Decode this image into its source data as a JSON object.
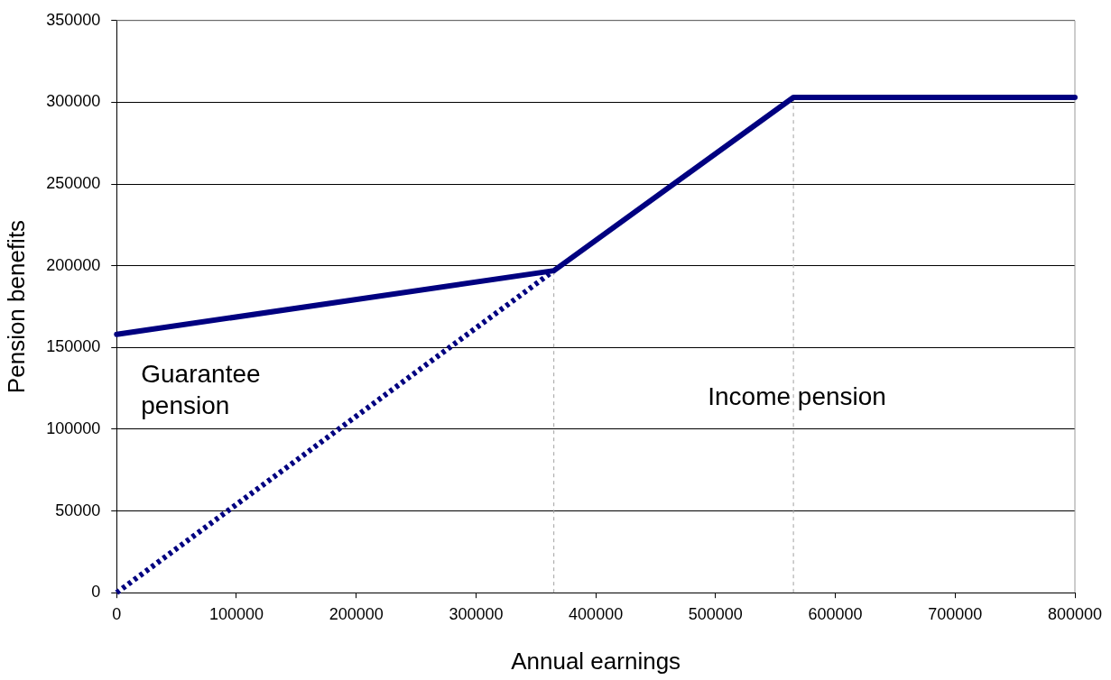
{
  "chart_data": {
    "type": "line",
    "xlabel": "Annual earnings",
    "ylabel": "Pension benefits",
    "xlim": [
      0,
      800000
    ],
    "xticks": [
      0,
      100000,
      200000,
      300000,
      400000,
      500000,
      600000,
      700000,
      800000
    ],
    "ylim": [
      0,
      350000
    ],
    "yticks": [
      0,
      50000,
      100000,
      150000,
      200000,
      250000,
      300000,
      350000
    ],
    "grid": "y",
    "legend": false,
    "marker": "none",
    "series": [
      {
        "color": "#000080",
        "x": [
          0,
          365000,
          565000,
          800000
        ],
        "values": [
          158000,
          197000,
          303000,
          303000
        ],
        "line_style": "solid"
      },
      {
        "color": "#000080",
        "x": [
          0,
          365000
        ],
        "values": [
          0,
          197000
        ],
        "line_style": "dotted"
      },
      {
        "color": "#a0a0a0",
        "x": [
          365000,
          365000
        ],
        "values": [
          0,
          197000
        ],
        "line_style": "dotted"
      },
      {
        "color": "#a0a0a0",
        "x": [
          565000,
          565000
        ],
        "values": [
          0,
          303000
        ],
        "line_style": "dotted"
      }
    ],
    "annotations": [
      "Guarantee pension",
      "Income pension"
    ]
  }
}
